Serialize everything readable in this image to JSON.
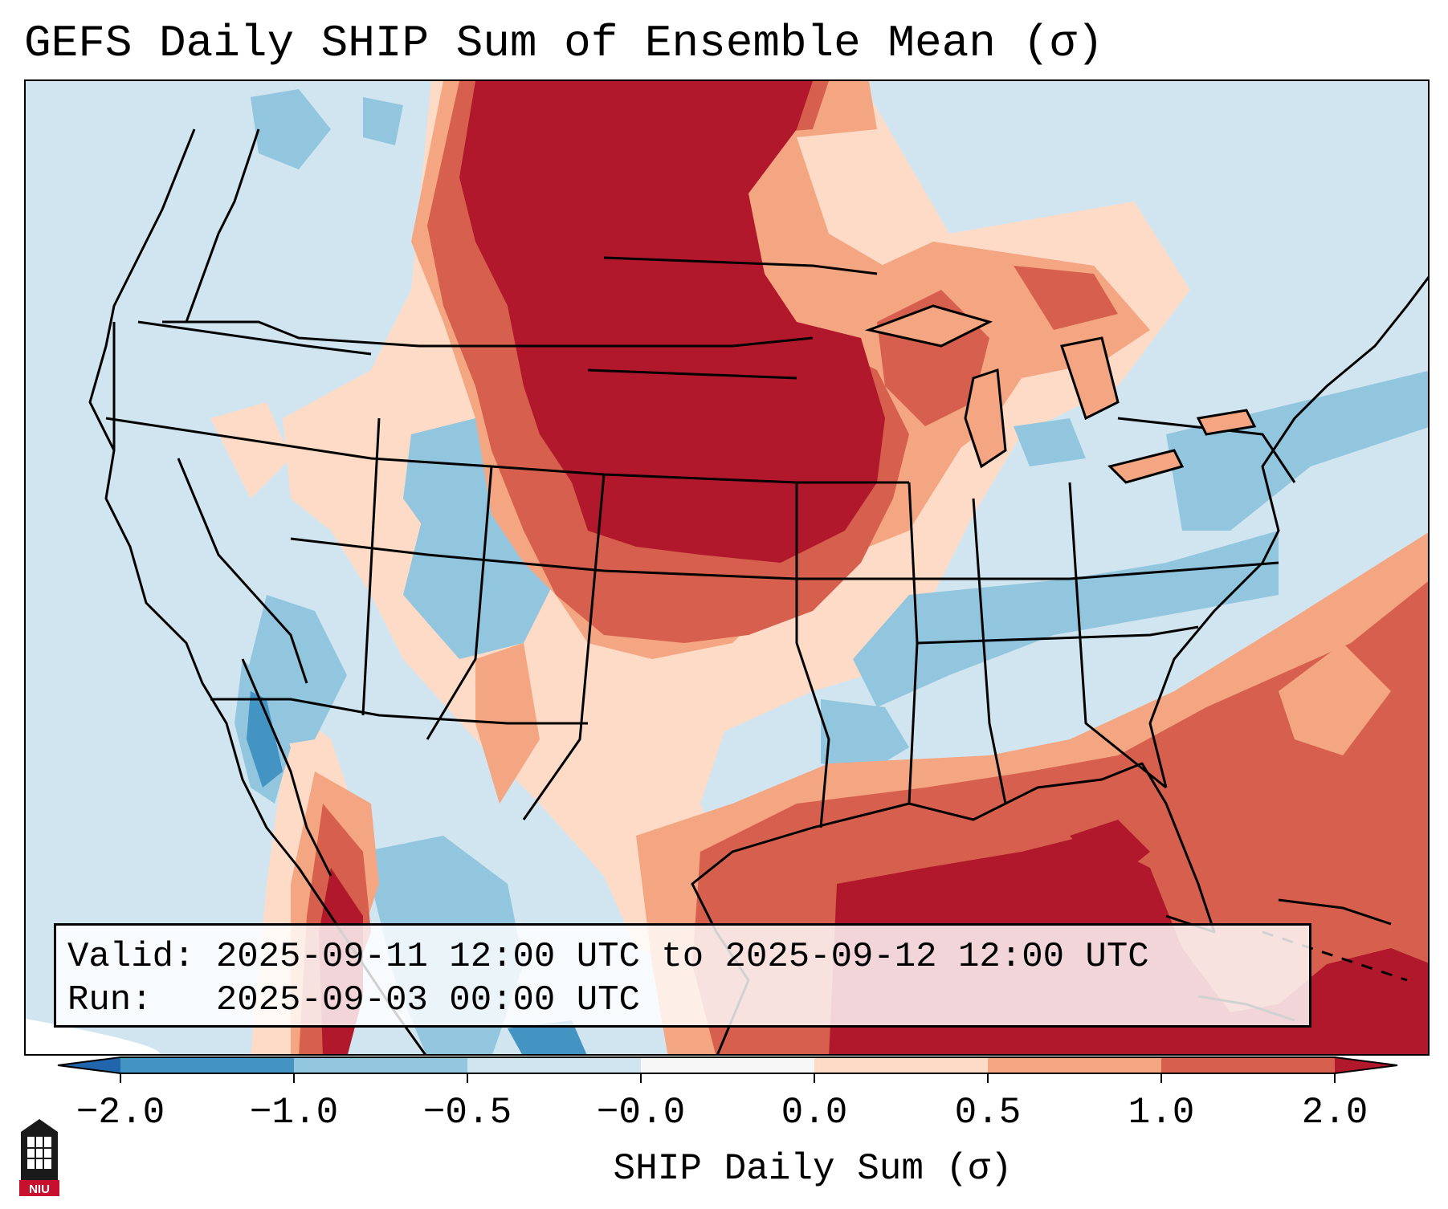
{
  "title": "GEFS Daily SHIP Sum of Ensemble Mean (σ)",
  "info": {
    "valid_label": "Valid:",
    "valid_value": "2025-09-11 12:00 UTC to 2025-09-12 12:00 UTC",
    "run_label": "Run:",
    "run_value": "2025-09-03 00:00 UTC"
  },
  "colorbar": {
    "label": "SHIP Daily Sum (σ)",
    "ticks": [
      "−2.0",
      "−1.0",
      "−0.5",
      "−0.0",
      "0.0",
      "0.5",
      "1.0",
      "2.0"
    ],
    "bins": [
      {
        "range": "<-2.0",
        "color": "#2166ac"
      },
      {
        "range": "-2.0 to -1.0",
        "color": "#4393c3"
      },
      {
        "range": "-1.0 to -0.5",
        "color": "#92c5de"
      },
      {
        "range": "-0.5 to -0.0",
        "color": "#d1e5f0"
      },
      {
        "range": "-0.0 to 0.0",
        "color": "#f7f7f7"
      },
      {
        "range": "0.0 to 0.5",
        "color": "#fddbc7"
      },
      {
        "range": "0.5 to 1.0",
        "color": "#f4a582"
      },
      {
        "range": "1.0 to 2.0",
        "color": "#d6604d"
      },
      {
        "range": ">2.0",
        "color": "#b2182b"
      }
    ]
  },
  "logo": {
    "text": "NIU",
    "color": "#c8102e"
  },
  "colors": {
    "neg_strong": "#4393c3",
    "neg": "#92c5de",
    "neg_weak": "#d1e5f0",
    "pos_weak": "#fddbc7",
    "pos": "#f4a582",
    "pos_mid": "#d6604d",
    "pos_strong": "#b2182b"
  }
}
